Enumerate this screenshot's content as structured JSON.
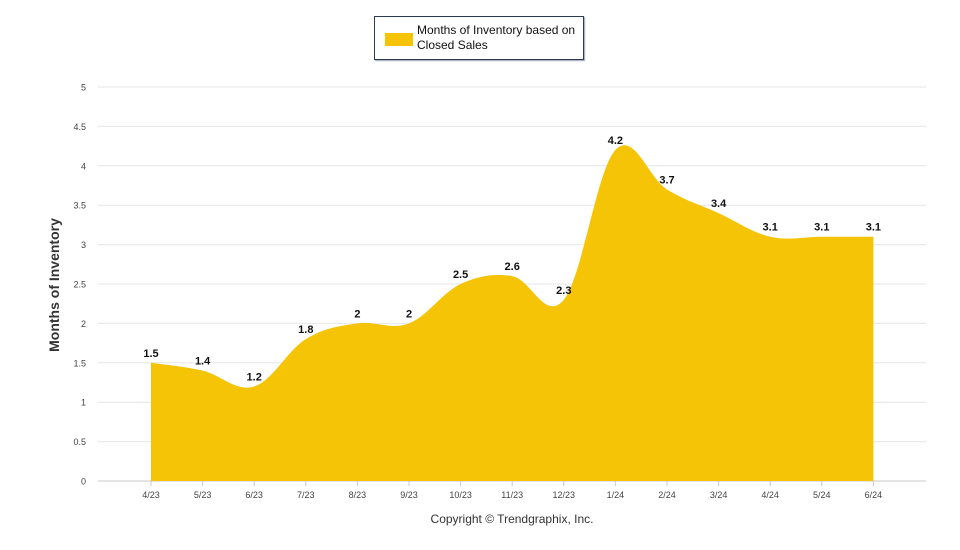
{
  "legend": {
    "label": "Months of Inventory based on Closed Sales"
  },
  "footer": {
    "copyright": "Copyright © Trendgraphix, Inc."
  },
  "colors": {
    "series": "#F5C407",
    "grid": "#e6e6e6",
    "axis_text": "#444444",
    "label_text": "#111111"
  },
  "chart_data": {
    "type": "area",
    "categories": [
      "4/23",
      "5/23",
      "6/23",
      "7/23",
      "8/23",
      "9/23",
      "10/23",
      "11/23",
      "12/23",
      "1/24",
      "2/24",
      "3/24",
      "4/24",
      "5/24",
      "6/24"
    ],
    "series": [
      {
        "name": "Months of Inventory based on Closed Sales",
        "values": [
          1.5,
          1.4,
          1.2,
          1.8,
          2,
          2,
          2.5,
          2.6,
          2.3,
          4.2,
          3.7,
          3.4,
          3.1,
          3.1,
          3.1
        ]
      }
    ],
    "data_labels": [
      "1.5",
      "1.4",
      "1.2",
      "1.8",
      "2",
      "2",
      "2.5",
      "2.6",
      "2.3",
      "4.2",
      "3.7",
      "3.4",
      "3.1",
      "3.1",
      "3.1"
    ],
    "yticks": [
      "0",
      "0.5",
      "1",
      "1.5",
      "2",
      "2.5",
      "3",
      "3.5",
      "4",
      "4.5",
      "5"
    ],
    "ylabel": "Months of Inventory",
    "xlabel": "",
    "ylim": [
      0,
      5
    ],
    "grid": true,
    "legend_position": "top-center"
  }
}
